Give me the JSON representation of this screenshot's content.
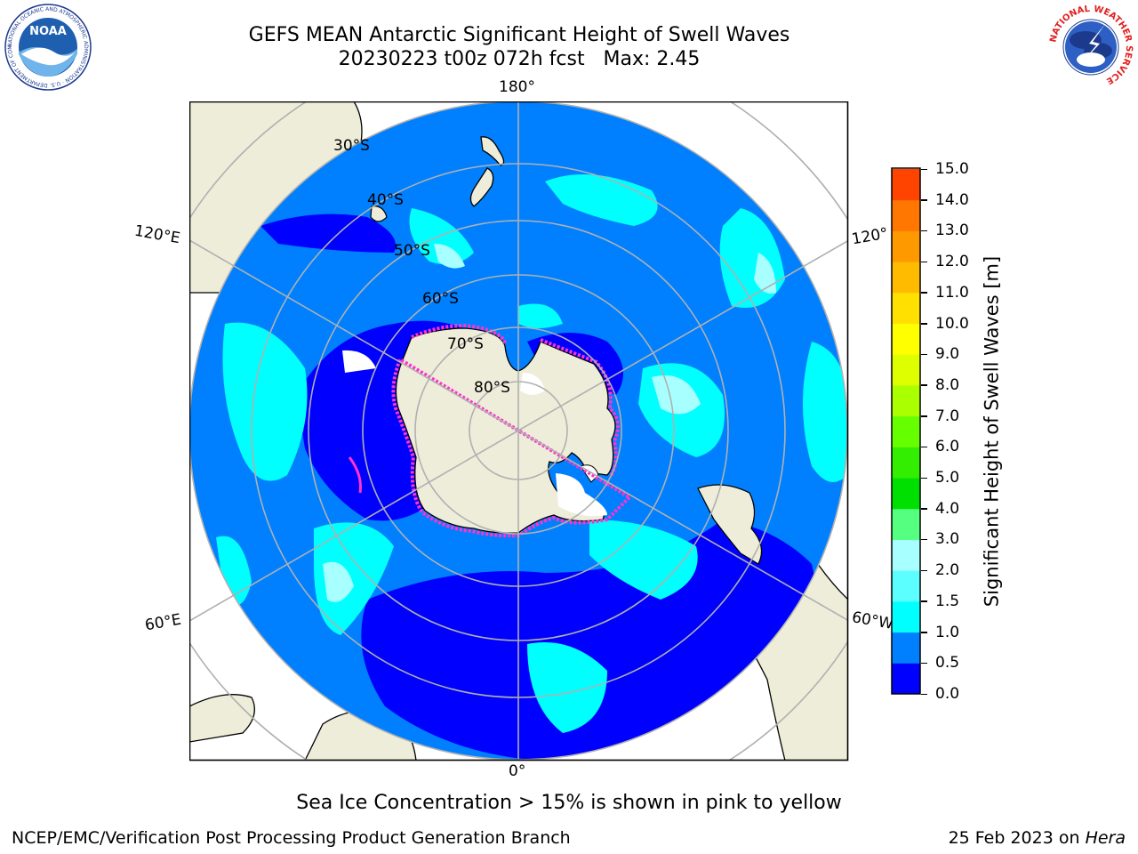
{
  "header": {
    "title_line1": "GEFS MEAN Antarctic Significant Height of Swell Waves",
    "title_line2": "20230223 t00z 072h fcst   Max: 2.45"
  },
  "logos": {
    "noaa_text": "NOAA",
    "noaa_ring_text": "NATIONAL OCEANIC AND ATMOSPHERIC ADMINISTRATION · U.S. DEPARTMENT OF COMMERCE",
    "nws_ring_text": "NATIONAL WEATHER SERVICE"
  },
  "map": {
    "projection": "south-polar-stereographic",
    "longitude_labels": {
      "top": "180°",
      "bottom": "0°",
      "upper_left": "120°E",
      "upper_right": "120°",
      "lower_left": "60°E",
      "lower_right": "60°W"
    },
    "latitude_labels": [
      "30°S",
      "40°S",
      "50°S",
      "60°S",
      "70°S",
      "80°S"
    ],
    "colors": {
      "ocean_0_0_5": "#0000ff",
      "ocean_0_5_1_0": "#0080ff",
      "ocean_1_0_1_5": "#00ffff",
      "ocean_1_5_2_0": "#5cffff",
      "ocean_2_0_2_5": "#a8ffff",
      "land": "#eeedda",
      "sea_ice_edge": "#ff33cc"
    }
  },
  "colorbar": {
    "label": "Significant Height of Swell Waves [m]",
    "ticks": [
      "15.0",
      "14.0",
      "13.0",
      "12.0",
      "11.0",
      "10.0",
      "9.0",
      "8.0",
      "7.0",
      "6.0",
      "5.0",
      "4.0",
      "3.0",
      "2.0",
      "1.5",
      "1.0",
      "0.5",
      "0.0"
    ],
    "colors_bottom_to_top": [
      "#0000ff",
      "#0080ff",
      "#00ffff",
      "#5cffff",
      "#a8ffff",
      "#55ff80",
      "#00e000",
      "#33ee00",
      "#66ff00",
      "#aaff00",
      "#ddff00",
      "#ffff00",
      "#ffe000",
      "#ffbb00",
      "#ff9900",
      "#ff7700",
      "#ff4400",
      "#ff0000"
    ]
  },
  "note": "Sea Ice Concentration > 15% is shown in pink to yellow",
  "footer": {
    "left": "NCEP/EMC/Verification Post Processing Product Generation Branch",
    "right_prefix": "25 Feb 2023 on ",
    "right_italic": "Hera"
  }
}
